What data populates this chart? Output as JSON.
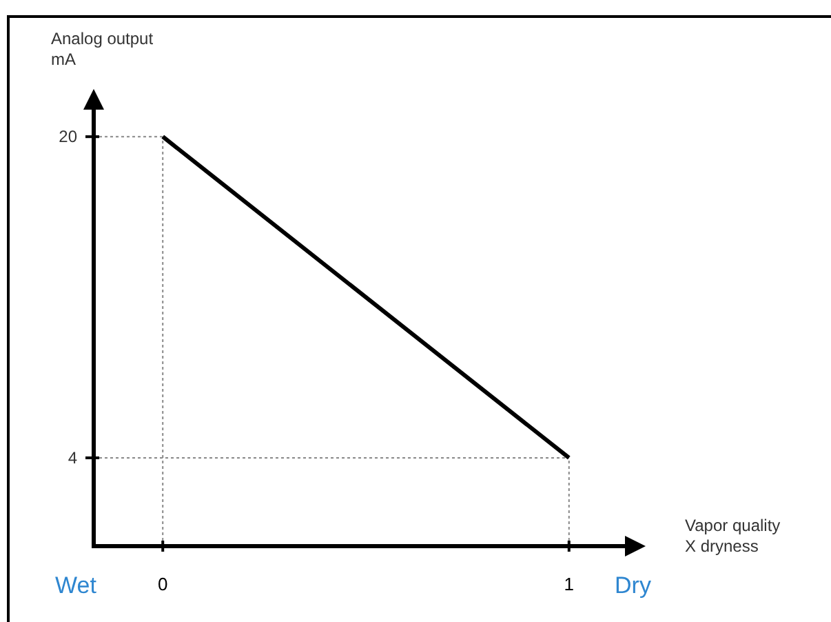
{
  "chart_data": {
    "type": "line",
    "xlabel": "Vapor quality\nX dryness",
    "ylabel": "Analog output\nmA",
    "x": [
      0,
      1
    ],
    "series": [
      {
        "color": "#000000",
        "values": [
          20,
          4
        ]
      }
    ],
    "xlim": [
      -0.17,
      1.17
    ],
    "ylim": [
      -0.4,
      22
    ],
    "xticks": [
      0,
      1
    ],
    "yticks": [
      20,
      4
    ],
    "ref_lines": [
      {
        "axis": "x",
        "value": 0,
        "line_style": "dotted",
        "color": "#888888"
      },
      {
        "axis": "x",
        "value": 1,
        "line_style": "dotted",
        "color": "#888888"
      },
      {
        "axis": "y",
        "value": 20,
        "line_style": "dotted",
        "color": "#888888"
      },
      {
        "axis": "y",
        "value": 4,
        "line_style": "dotted",
        "color": "#888888"
      }
    ],
    "annotations": [
      "Wet",
      "Dry"
    ],
    "grid": false,
    "marker": "none",
    "line_style": "solid"
  }
}
